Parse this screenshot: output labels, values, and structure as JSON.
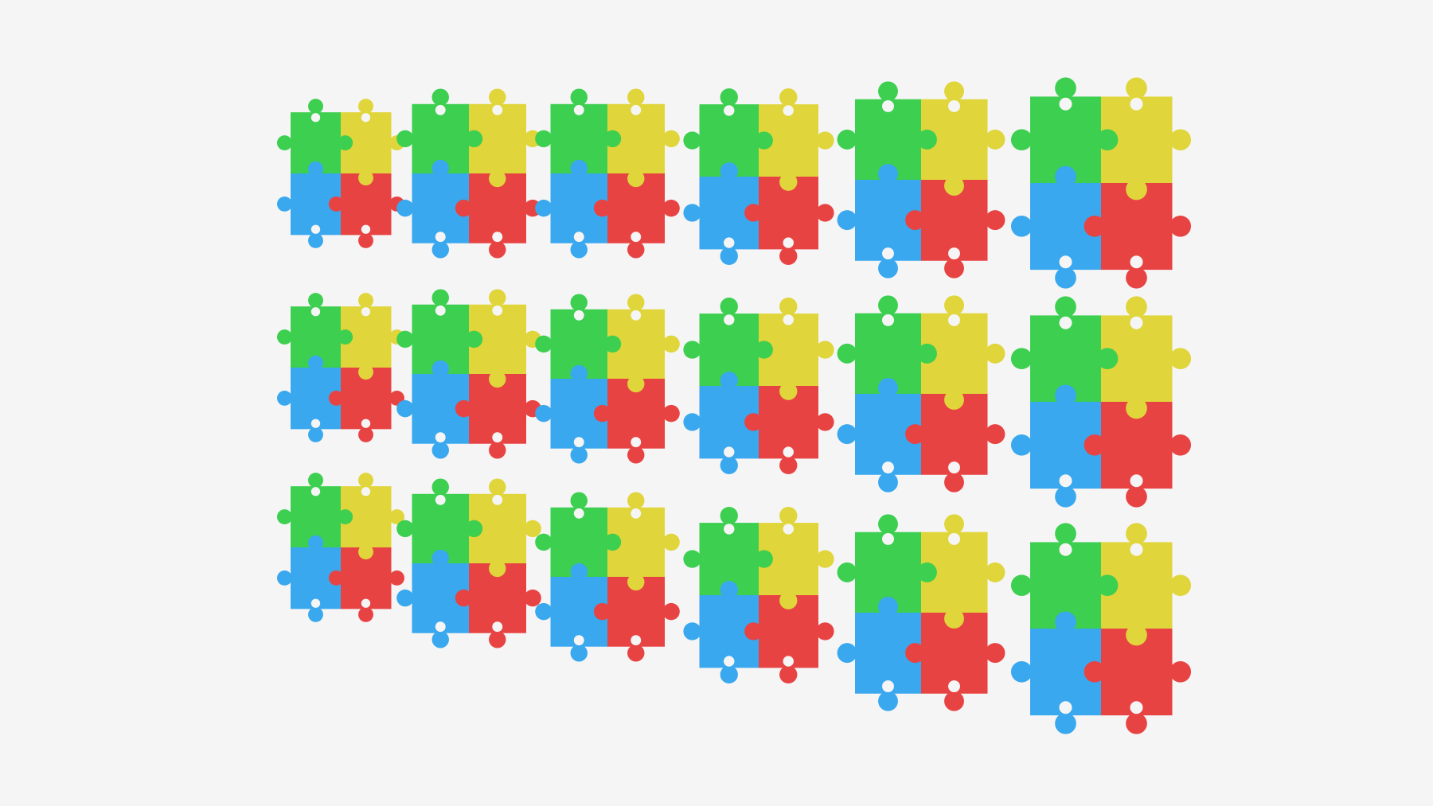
{
  "image": {
    "subject": "puzzle-pieces-grid",
    "rows": 3,
    "columns": 6,
    "colors": {
      "background": "#f5f5f5",
      "green": "#3ccf50",
      "yellow": "#e0d53a",
      "blue": "#3aa8ee",
      "red": "#e84343"
    }
  }
}
